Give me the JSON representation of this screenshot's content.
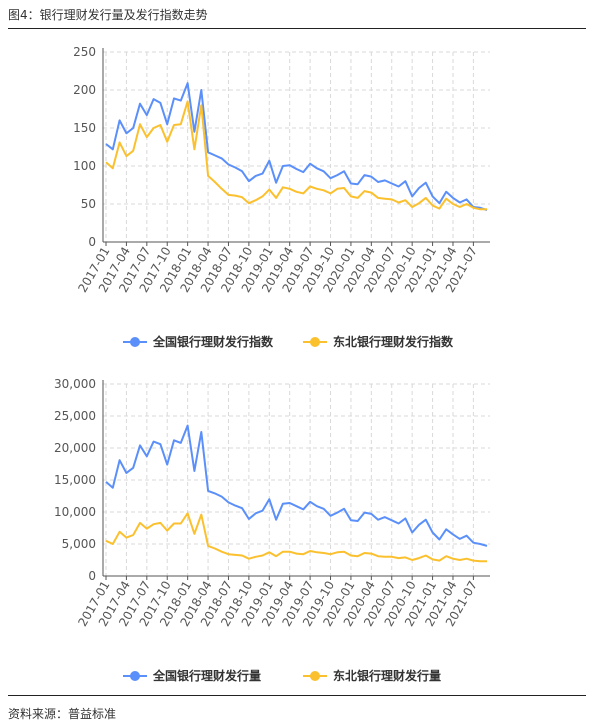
{
  "header": {
    "title": "图4：银行理财发行量及发行指数走势"
  },
  "footer": {
    "source": "资料来源：普益标准"
  },
  "colors": {
    "national": "#5b8ff9",
    "northeast": "#fbc02d",
    "grid": "#d9d9d9",
    "axis": "#555555"
  },
  "chart_data": [
    {
      "type": "line",
      "grid": true,
      "legend_position": "bottom-center",
      "ylim": [
        0,
        250
      ],
      "yticks": [
        0,
        50,
        100,
        150,
        200,
        250
      ],
      "ytick_labels": [
        "0",
        "50",
        "100",
        "150",
        "200",
        "250"
      ],
      "x": [
        "2017-01",
        "2017-02",
        "2017-03",
        "2017-04",
        "2017-05",
        "2017-06",
        "2017-07",
        "2017-08",
        "2017-09",
        "2017-10",
        "2017-11",
        "2017-12",
        "2018-01",
        "2018-02",
        "2018-03",
        "2018-04",
        "2018-05",
        "2018-06",
        "2018-07",
        "2018-08",
        "2018-09",
        "2018-10",
        "2018-11",
        "2018-12",
        "2019-01",
        "2019-02",
        "2019-03",
        "2019-04",
        "2019-05",
        "2019-06",
        "2019-07",
        "2019-08",
        "2019-09",
        "2019-10",
        "2019-11",
        "2019-12",
        "2020-01",
        "2020-02",
        "2020-03",
        "2020-04",
        "2020-05",
        "2020-06",
        "2020-07",
        "2020-08",
        "2020-09",
        "2020-10",
        "2020-11",
        "2020-12",
        "2021-01",
        "2021-02",
        "2021-03",
        "2021-04",
        "2021-05",
        "2021-06",
        "2021-07",
        "2021-08",
        "2021-09"
      ],
      "xtick_labels": [
        "2017-01",
        "2017-04",
        "2017-07",
        "2017-10",
        "2018-01",
        "2018-04",
        "2018-07",
        "2018-10",
        "2019-01",
        "2019-04",
        "2019-07",
        "2019-10",
        "2020-01",
        "2020-04",
        "2020-07",
        "2020-10",
        "2021-01",
        "2021-04",
        "2021-07"
      ],
      "series": [
        {
          "name": "全国银行理财发行指数",
          "values": [
            129,
            122,
            160,
            143,
            150,
            182,
            167,
            188,
            183,
            155,
            189,
            186,
            209,
            145,
            200,
            118,
            114,
            110,
            102,
            98,
            93,
            80,
            87,
            90,
            107,
            78,
            100,
            101,
            96,
            92,
            103,
            97,
            93,
            84,
            88,
            93,
            77,
            76,
            88,
            86,
            79,
            81,
            77,
            73,
            80,
            60,
            71,
            78,
            60,
            51,
            66,
            58,
            52,
            56,
            46,
            45,
            42
          ]
        },
        {
          "name": "东北银行理财发行指数",
          "values": [
            105,
            97,
            131,
            113,
            120,
            155,
            138,
            150,
            154,
            132,
            154,
            155,
            185,
            122,
            180,
            87,
            79,
            70,
            62,
            61,
            59,
            51,
            55,
            60,
            69,
            58,
            72,
            70,
            66,
            64,
            73,
            70,
            68,
            64,
            70,
            71,
            60,
            58,
            67,
            65,
            58,
            57,
            56,
            52,
            55,
            46,
            51,
            58,
            48,
            44,
            57,
            50,
            46,
            50,
            45,
            43,
            43
          ]
        }
      ]
    },
    {
      "type": "line",
      "grid": true,
      "legend_position": "bottom-center",
      "ylim": [
        0,
        30000
      ],
      "yticks": [
        0,
        5000,
        10000,
        15000,
        20000,
        25000,
        30000
      ],
      "ytick_labels": [
        "0",
        "5,000",
        "10,000",
        "15,000",
        "20,000",
        "25,000",
        "30,000"
      ],
      "x": [
        "2017-01",
        "2017-02",
        "2017-03",
        "2017-04",
        "2017-05",
        "2017-06",
        "2017-07",
        "2017-08",
        "2017-09",
        "2017-10",
        "2017-11",
        "2017-12",
        "2018-01",
        "2018-02",
        "2018-03",
        "2018-04",
        "2018-05",
        "2018-06",
        "2018-07",
        "2018-08",
        "2018-09",
        "2018-10",
        "2018-11",
        "2018-12",
        "2019-01",
        "2019-02",
        "2019-03",
        "2019-04",
        "2019-05",
        "2019-06",
        "2019-07",
        "2019-08",
        "2019-09",
        "2019-10",
        "2019-11",
        "2019-12",
        "2020-01",
        "2020-02",
        "2020-03",
        "2020-04",
        "2020-05",
        "2020-06",
        "2020-07",
        "2020-08",
        "2020-09",
        "2020-10",
        "2020-11",
        "2020-12",
        "2021-01",
        "2021-02",
        "2021-03",
        "2021-04",
        "2021-05",
        "2021-06",
        "2021-07",
        "2021-08",
        "2021-09"
      ],
      "xtick_labels": [
        "2017-01",
        "2017-04",
        "2017-07",
        "2017-10",
        "2018-01",
        "2018-04",
        "2018-07",
        "2018-10",
        "2019-01",
        "2019-04",
        "2019-07",
        "2019-10",
        "2020-01",
        "2020-04",
        "2020-07",
        "2020-10",
        "2021-01",
        "2021-04",
        "2021-07"
      ],
      "series": [
        {
          "name": "全国银行理财发行量",
          "values": [
            14700,
            13800,
            18100,
            16100,
            16900,
            20400,
            18700,
            21000,
            20600,
            17400,
            21200,
            20800,
            23500,
            16400,
            22500,
            13300,
            12900,
            12400,
            11500,
            11000,
            10600,
            8900,
            9800,
            10200,
            12000,
            8800,
            11300,
            11400,
            10900,
            10400,
            11600,
            10900,
            10500,
            9400,
            9900,
            10500,
            8700,
            8600,
            9900,
            9700,
            8800,
            9200,
            8700,
            8200,
            9000,
            6800,
            8000,
            8800,
            6800,
            5700,
            7300,
            6500,
            5800,
            6300,
            5200,
            5000,
            4700
          ]
        },
        {
          "name": "东北银行理财发行量",
          "values": [
            5500,
            5000,
            6900,
            6000,
            6400,
            8300,
            7400,
            8100,
            8300,
            7100,
            8200,
            8200,
            9800,
            6600,
            9600,
            4700,
            4300,
            3800,
            3400,
            3300,
            3200,
            2700,
            3000,
            3200,
            3700,
            3100,
            3800,
            3800,
            3500,
            3400,
            3900,
            3700,
            3600,
            3400,
            3700,
            3800,
            3200,
            3100,
            3600,
            3500,
            3100,
            3000,
            3000,
            2800,
            2900,
            2500,
            2800,
            3200,
            2600,
            2400,
            3100,
            2700,
            2500,
            2700,
            2400,
            2300,
            2300
          ]
        }
      ]
    }
  ]
}
